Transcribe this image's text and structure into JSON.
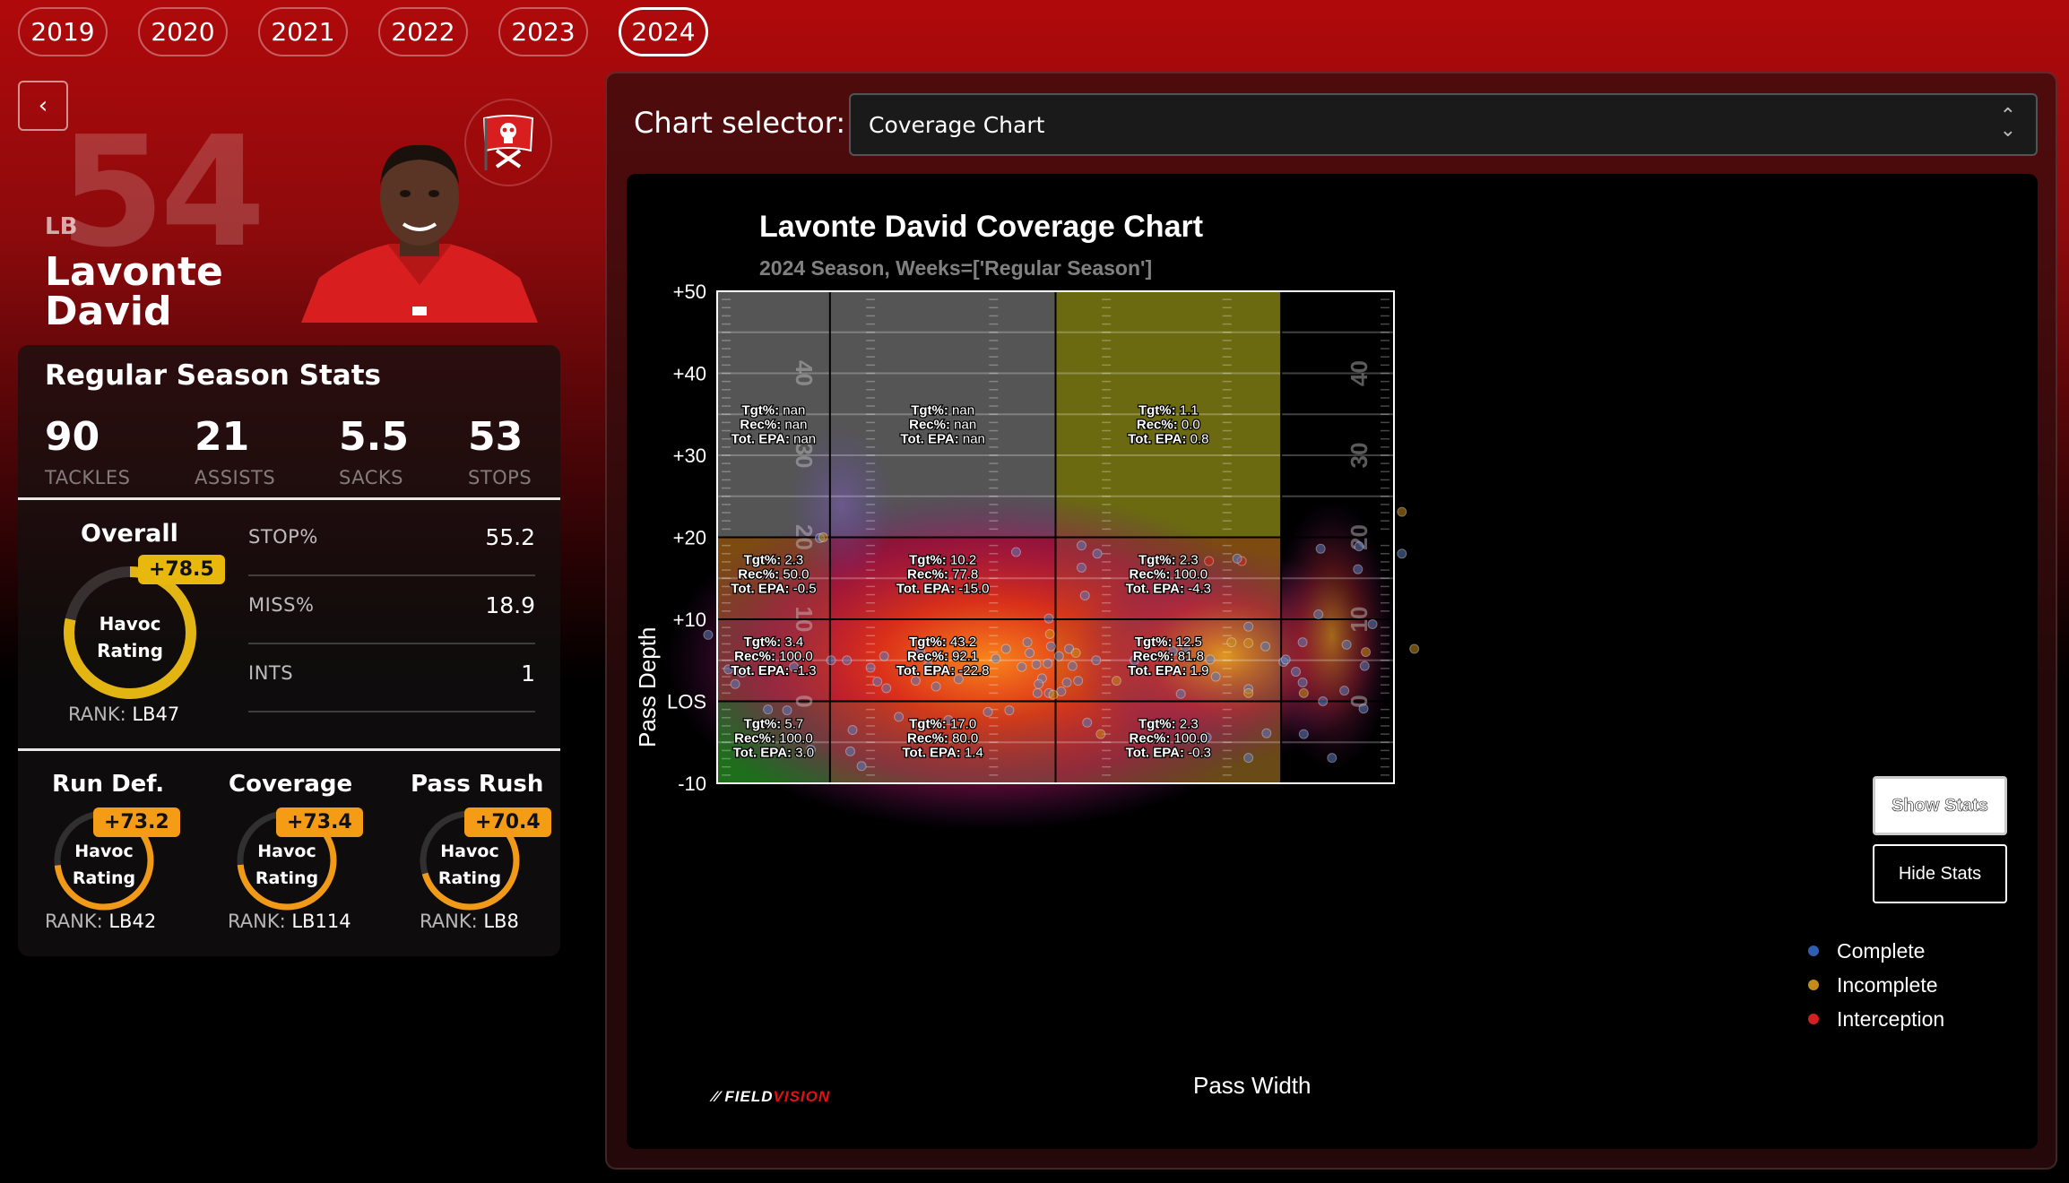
{
  "years": [
    "2019",
    "2020",
    "2021",
    "2022",
    "2023",
    "2024"
  ],
  "active_year": "2024",
  "back_label": "‹",
  "player": {
    "jersey": "54",
    "position": "LB",
    "first_name": "Lavonte",
    "last_name": "David"
  },
  "stats": {
    "title": "Regular Season Stats",
    "items": [
      {
        "value": "90",
        "label": "TACKLES"
      },
      {
        "value": "21",
        "label": "ASSISTS"
      },
      {
        "value": "5.5",
        "label": "SACKS"
      },
      {
        "value": "53",
        "label": "STOPS"
      }
    ]
  },
  "overall": {
    "title": "Overall",
    "badge": "+78.5",
    "ring_line1": "Havoc",
    "ring_line2": "Rating",
    "rank_label": "RANK:",
    "rank_value": "LB47",
    "ring_fraction": 0.785,
    "metrics": [
      {
        "label": "STOP%",
        "value": "55.2"
      },
      {
        "label": "MISS%",
        "value": "18.9"
      },
      {
        "label": "INTS",
        "value": "1"
      }
    ]
  },
  "sub_ratings": [
    {
      "title": "Run Def.",
      "badge": "+73.2",
      "line1": "Havoc",
      "line2": "Rating",
      "rank_label": "RANK:",
      "rank_value": "LB42",
      "fraction": 0.732
    },
    {
      "title": "Coverage",
      "badge": "+73.4",
      "line1": "Havoc",
      "line2": "Rating",
      "rank_label": "RANK:",
      "rank_value": "LB114",
      "fraction": 0.734
    },
    {
      "title": "Pass Rush",
      "badge": "+70.4",
      "line1": "Havoc",
      "line2": "Rating",
      "rank_label": "RANK:",
      "rank_value": "LB8",
      "fraction": 0.704
    }
  ],
  "selector": {
    "label": "Chart selector:",
    "value": "Coverage Chart"
  },
  "buttons": {
    "show_stats": "Show Stats",
    "hide_stats": "Hide Stats"
  },
  "brand": {
    "part1": "FIELD",
    "part2": "VISION"
  },
  "colors": {
    "complete": "#2f5fb0",
    "incomplete": "#c48a1a",
    "interception": "#d42020",
    "badge_overall": "#e8b80d",
    "badge_sub": "#f59c16"
  },
  "chart_data": {
    "type": "scatter",
    "title": "Lavonte David Coverage Chart",
    "subtitle": "2024 Season, Weeks=['Regular Season']",
    "xlabel": "Pass Width",
    "ylabel": "Pass Depth",
    "y_ticks": [
      "+50",
      "+40",
      "+30",
      "+20",
      "+10",
      "LOS",
      "-10"
    ],
    "y_tick_values": [
      50,
      40,
      30,
      20,
      10,
      0,
      -10
    ],
    "ylim": [
      -10,
      50
    ],
    "xlim": [
      -30,
      30
    ],
    "x_zone_edges": [
      -30,
      -20,
      0,
      20,
      30
    ],
    "y_zone_edges": [
      -10,
      0,
      10,
      20,
      50
    ],
    "field_numbers_left": [
      "40",
      "30",
      "20",
      "10",
      "0"
    ],
    "field_numbers_right": [
      "40",
      "30",
      "20",
      "10",
      "0"
    ],
    "zones": [
      {
        "col": 0,
        "row": 3,
        "tgt": "nan",
        "rec": "nan",
        "epa": "nan",
        "fill": "#555555"
      },
      {
        "col": 1,
        "row": 3,
        "tgt": "nan",
        "rec": "nan",
        "epa": "nan",
        "fill": "#555555"
      },
      {
        "col": 2,
        "row": 3,
        "tgt": "1.1",
        "rec": "0.0",
        "epa": "0.8",
        "fill": "#6b6a10"
      },
      {
        "col": 0,
        "row": 2,
        "tgt": "2.3",
        "rec": "50.0",
        "epa": "-0.5",
        "fill": "#7d4a12"
      },
      {
        "col": 1,
        "row": 2,
        "tgt": "10.2",
        "rec": "77.8",
        "epa": "-15.0",
        "fill": "#7a1616"
      },
      {
        "col": 2,
        "row": 2,
        "tgt": "2.3",
        "rec": "100.0",
        "epa": "-4.3",
        "fill": "#7d4a12"
      },
      {
        "col": 0,
        "row": 1,
        "tgt": "3.4",
        "rec": "100.0",
        "epa": "-1.3",
        "fill": "#704420"
      },
      {
        "col": 1,
        "row": 1,
        "tgt": "43.2",
        "rec": "92.1",
        "epa": "-22.8",
        "fill": "#8c1616"
      },
      {
        "col": 2,
        "row": 1,
        "tgt": "12.5",
        "rec": "81.8",
        "epa": "1.9",
        "fill": "#2f6a1e"
      },
      {
        "col": 0,
        "row": 0,
        "tgt": "5.7",
        "rec": "100.0",
        "epa": "3.0",
        "fill": "#1f6e1c"
      },
      {
        "col": 1,
        "row": 0,
        "tgt": "17.0",
        "rec": "80.0",
        "epa": "1.4",
        "fill": "#4a6418"
      },
      {
        "col": 2,
        "row": 0,
        "tgt": "2.3",
        "rec": "100.0",
        "epa": "-0.3",
        "fill": "#6a4a16"
      }
    ],
    "zone_labels": {
      "tgt": "Tgt%",
      "rec": "Rec%",
      "epa": "Tot. EPA"
    },
    "legend": [
      "Complete",
      "Incomplete",
      "Interception"
    ],
    "points": [
      [
        -30.8,
        8.1,
        "c"
      ],
      [
        -28.4,
        2.1,
        "c"
      ],
      [
        -27.8,
        3.5,
        "c"
      ],
      [
        -25.5,
        -1.0,
        "c"
      ],
      [
        -23.8,
        -1.1,
        "c"
      ],
      [
        -21.7,
        -5.9,
        "c"
      ],
      [
        -23.2,
        4.2,
        "c"
      ],
      [
        -20.9,
        19.9,
        "c"
      ],
      [
        -20.6,
        20.0,
        "i"
      ],
      [
        -19.9,
        5.0,
        "c"
      ],
      [
        -18.5,
        5.0,
        "c"
      ],
      [
        -18.0,
        -3.5,
        "c"
      ],
      [
        -18.2,
        -6.1,
        "c"
      ],
      [
        -17.2,
        -7.9,
        "c"
      ],
      [
        -16.4,
        4.1,
        "c"
      ],
      [
        -15.8,
        2.4,
        "c"
      ],
      [
        -15.2,
        5.5,
        "c"
      ],
      [
        -15.0,
        1.6,
        "c"
      ],
      [
        -13.9,
        -1.9,
        "c"
      ],
      [
        -12.4,
        2.5,
        "c"
      ],
      [
        -12.0,
        6.2,
        "c"
      ],
      [
        -11.3,
        4.3,
        "c"
      ],
      [
        -10.6,
        1.8,
        "c"
      ],
      [
        -9.5,
        -2.3,
        "c"
      ],
      [
        -8.6,
        2.7,
        "c"
      ],
      [
        -6.0,
        -1.3,
        "c"
      ],
      [
        -5.3,
        5.2,
        "c"
      ],
      [
        -4.4,
        6.4,
        "c"
      ],
      [
        -3.5,
        18.2,
        "c"
      ],
      [
        -3.0,
        4.2,
        "c"
      ],
      [
        -2.5,
        7.2,
        "c"
      ],
      [
        -2.3,
        5.9,
        "c"
      ],
      [
        -1.7,
        4.5,
        "c"
      ],
      [
        -1.6,
        1.0,
        "c"
      ],
      [
        -1.2,
        2.8,
        "c"
      ],
      [
        -0.7,
        4.6,
        "c"
      ],
      [
        -0.4,
        6.7,
        "c"
      ],
      [
        0.3,
        5.5,
        "c"
      ],
      [
        0.5,
        1.2,
        "c"
      ],
      [
        1.0,
        2.3,
        "c"
      ],
      [
        1.2,
        6.4,
        "c"
      ],
      [
        1.5,
        4.3,
        "c"
      ],
      [
        2.3,
        16.3,
        "c"
      ],
      [
        2.6,
        12.9,
        "c"
      ],
      [
        2.8,
        -2.6,
        "c"
      ],
      [
        2.0,
        2.5,
        "c"
      ],
      [
        -0.6,
        1.0,
        "c"
      ],
      [
        -1.5,
        2.1,
        "c"
      ],
      [
        -0.6,
        10.1,
        "c"
      ],
      [
        -4.1,
        -1.1,
        "c"
      ],
      [
        -0.2,
        0.8,
        "i"
      ],
      [
        1.8,
        5.9,
        "i"
      ],
      [
        -0.5,
        8.2,
        "i"
      ],
      [
        5.4,
        2.5,
        "i"
      ],
      [
        2.3,
        19.0,
        "c"
      ],
      [
        3.7,
        18.0,
        "c"
      ],
      [
        3.6,
        5.0,
        "c"
      ],
      [
        7.0,
        5.0,
        "c"
      ],
      [
        10.4,
        6.1,
        "c"
      ],
      [
        11.5,
        6.6,
        "c"
      ],
      [
        11.1,
        0.9,
        "c"
      ],
      [
        13.7,
        5.1,
        "c"
      ],
      [
        14.2,
        3.0,
        "c"
      ],
      [
        13.4,
        -4.4,
        "c"
      ],
      [
        15.6,
        7.2,
        "i"
      ],
      [
        17.1,
        9.1,
        "c"
      ],
      [
        17.1,
        7.1,
        "i"
      ],
      [
        17.1,
        1.5,
        "c"
      ],
      [
        17.1,
        1.0,
        "i"
      ],
      [
        17.1,
        -6.9,
        "c"
      ],
      [
        18.6,
        6.7,
        "c"
      ],
      [
        18.7,
        -3.9,
        "c"
      ],
      [
        20.2,
        4.8,
        "c"
      ],
      [
        20.4,
        5.1,
        "c"
      ],
      [
        21.3,
        3.6,
        "c"
      ],
      [
        21.9,
        7.2,
        "c"
      ],
      [
        23.3,
        10.6,
        "c"
      ],
      [
        25.8,
        6.9,
        "c"
      ],
      [
        26.8,
        16.1,
        "c"
      ],
      [
        26.9,
        18.9,
        "c"
      ],
      [
        27.4,
        4.3,
        "c"
      ],
      [
        27.5,
        6.0,
        "i"
      ],
      [
        28.1,
        9.4,
        "c"
      ],
      [
        30.7,
        23.1,
        "i"
      ],
      [
        30.7,
        18.0,
        "c"
      ],
      [
        23.7,
        0.0,
        "c"
      ],
      [
        23.5,
        18.6,
        "c"
      ],
      [
        22.0,
        -4.0,
        "c"
      ],
      [
        24.5,
        -6.9,
        "c"
      ],
      [
        21.9,
        2.3,
        "c"
      ],
      [
        25.6,
        1.3,
        "c"
      ],
      [
        27.3,
        -0.9,
        "c"
      ],
      [
        13.6,
        17.1,
        "i"
      ],
      [
        16.5,
        17.1,
        "i"
      ],
      [
        16.1,
        17.4,
        "c"
      ],
      [
        4.0,
        -4.0,
        "i"
      ],
      [
        22.0,
        1.0,
        "i"
      ],
      [
        31.8,
        6.4,
        "i"
      ],
      [
        -29.0,
        3.9,
        "c"
      ]
    ]
  }
}
